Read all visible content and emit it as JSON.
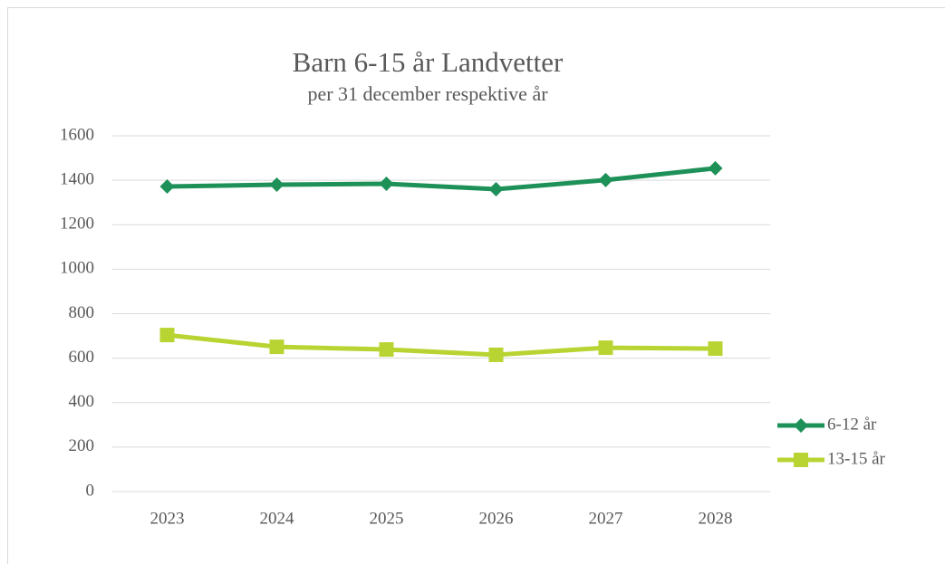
{
  "chart_data": {
    "type": "line",
    "title": "Barn 6-15 år Landvetter",
    "subtitle": "per 31 december respektive år",
    "categories": [
      "2023",
      "2024",
      "2025",
      "2026",
      "2027",
      "2028"
    ],
    "series": [
      {
        "name": "6-12 år",
        "color": "#1e9158",
        "marker": "diamond",
        "values": [
          1372,
          1380,
          1384,
          1360,
          1401,
          1454
        ]
      },
      {
        "name": "13-15 år",
        "color": "#b8d432",
        "marker": "square",
        "values": [
          704,
          651,
          639,
          615,
          647,
          643
        ]
      }
    ],
    "ylim": [
      0,
      1600
    ],
    "yticks": [
      0,
      200,
      400,
      600,
      800,
      1000,
      1200,
      1400,
      1600
    ],
    "grid": true,
    "legend": "right"
  }
}
